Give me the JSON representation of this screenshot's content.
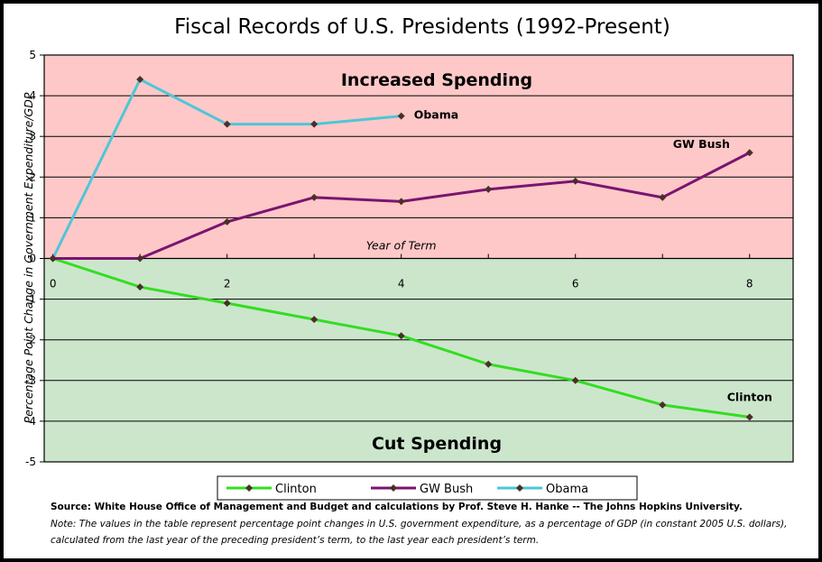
{
  "chart_data": {
    "type": "line",
    "title": "Fiscal Records of U.S. Presidents (1992-Present)",
    "xlabel": "Year of Term",
    "ylabel": "Percentage Point Change in Government Expenditure/GDP",
    "xlim": [
      -0.1,
      8.5
    ],
    "ylim": [
      -5,
      5
    ],
    "x_ticks": [
      0,
      2,
      4,
      6,
      8
    ],
    "y_ticks": [
      -5,
      -4,
      -3,
      -2,
      -1,
      0,
      1,
      2,
      3,
      4,
      5
    ],
    "zones": {
      "upper": {
        "label": "Increased Spending",
        "color": "#ffc8c8"
      },
      "lower": {
        "label": "Cut Spending",
        "color": "#cce6cc"
      }
    },
    "series": [
      {
        "name": "Clinton",
        "color": "#33dd22",
        "marker_color": "#4a2f2a",
        "x": [
          0,
          1,
          2,
          3,
          4,
          5,
          6,
          7,
          8
        ],
        "values": [
          0,
          -0.7,
          -1.1,
          -1.5,
          -1.9,
          -2.6,
          -3.0,
          -3.6,
          -3.9
        ],
        "annotation": "Clinton"
      },
      {
        "name": "GW Bush",
        "color": "#7a1470",
        "marker_color": "#4a2f2a",
        "x": [
          0,
          1,
          2,
          3,
          4,
          5,
          6,
          7,
          8
        ],
        "values": [
          0,
          0,
          0.9,
          1.5,
          1.4,
          1.7,
          1.9,
          1.5,
          2.6
        ],
        "annotation": "GW Bush"
      },
      {
        "name": "Obama",
        "color": "#4ec6d6",
        "marker_color": "#4a2f2a",
        "x": [
          0,
          1,
          2,
          3,
          4
        ],
        "values": [
          0,
          4.4,
          3.3,
          3.3,
          3.5
        ],
        "annotation": "Obama"
      }
    ],
    "legend": {
      "placement": "bottom"
    },
    "source": "Source: White House Office of Management and Budget and calculations by Prof. Steve H. Hanke -- The Johns Hopkins University.",
    "note": [
      "Note: The values in the table represent percentage point changes in U.S. government expenditure, as a percentage of GDP (in constant 2005 U.S. dollars),",
      "calculated from the last year of the preceding president’s term, to the last year each president’s term."
    ]
  }
}
